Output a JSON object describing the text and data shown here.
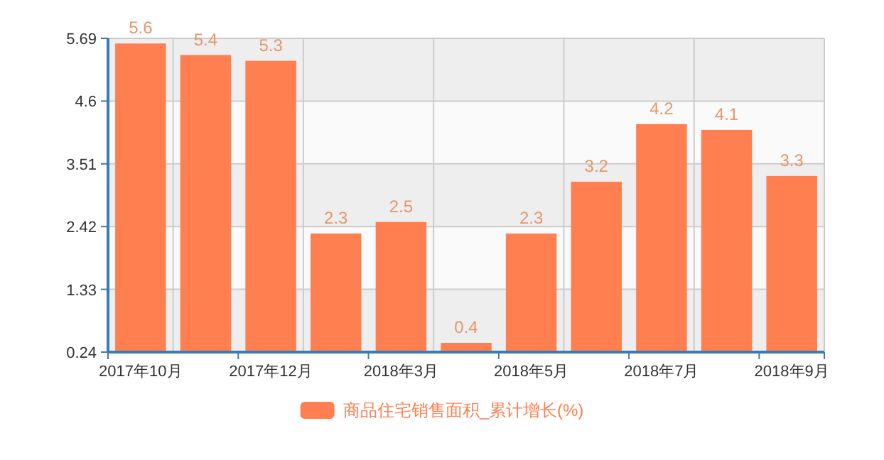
{
  "chart_data": {
    "type": "bar",
    "categories": [
      "2017年10月",
      null,
      "2017年12月",
      null,
      "2018年3月",
      null,
      "2018年5月",
      null,
      "2018年7月",
      null,
      "2018年9月"
    ],
    "series": [
      {
        "name": "商品住宅销售面积_累计增长(%)",
        "color": "#ff7f50",
        "values": [
          5.6,
          5.4,
          5.3,
          2.3,
          2.5,
          0.4,
          2.3,
          3.2,
          4.2,
          4.1,
          3.3
        ]
      }
    ],
    "ylim": [
      0.24,
      5.69
    ],
    "yticks": [
      0.24,
      1.33,
      2.42,
      3.51,
      4.6,
      5.69
    ],
    "grid": true,
    "legend": "bottom",
    "data_labels": true
  }
}
